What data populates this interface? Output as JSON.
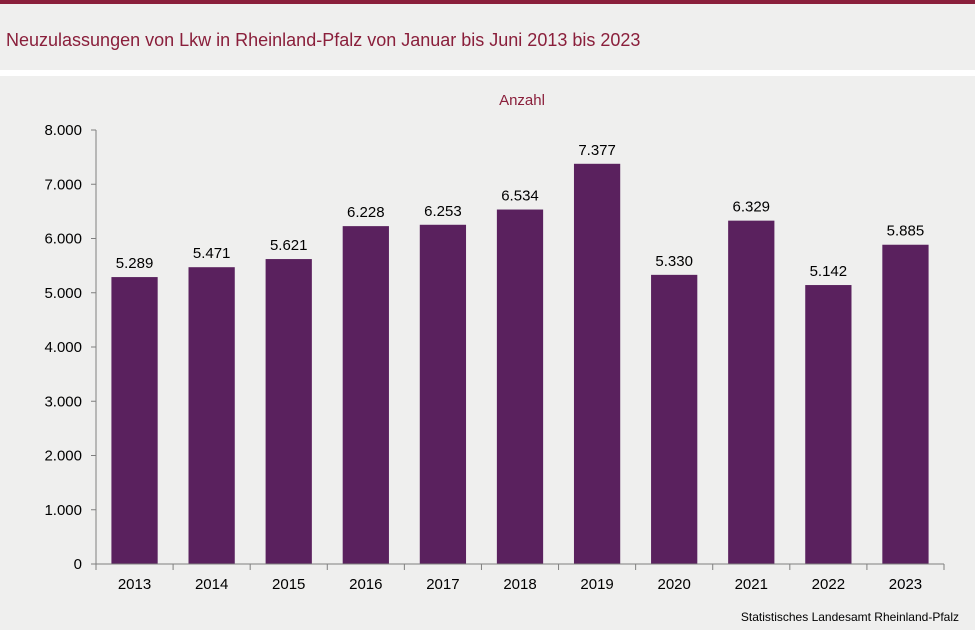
{
  "header": {
    "title": "Neuzulassungen von Lkw in Rheinland-Pfalz von Januar bis Juni 2013 bis 2023"
  },
  "footer": {
    "source": "Statistisches Landesamt  Rheinland-Pfalz"
  },
  "colors": {
    "bar": "#5a215e",
    "accent": "#8a1f3b"
  },
  "chart_data": {
    "type": "bar",
    "title": "Neuzulassungen von Lkw in Rheinland-Pfalz von Januar bis Juni 2013 bis 2023",
    "unit_label": "Anzahl",
    "categories": [
      "2013",
      "2014",
      "2015",
      "2016",
      "2017",
      "2018",
      "2019",
      "2020",
      "2021",
      "2022",
      "2023"
    ],
    "values": [
      5289,
      5471,
      5621,
      6228,
      6253,
      6534,
      7377,
      5330,
      6329,
      5142,
      5885
    ],
    "value_labels": [
      "5.289",
      "5.471",
      "5.621",
      "6.228",
      "6.253",
      "6.534",
      "7.377",
      "5.330",
      "6.329",
      "5.142",
      "5.885"
    ],
    "ylim": [
      0,
      8000
    ],
    "yticks": [
      0,
      1000,
      2000,
      3000,
      4000,
      5000,
      6000,
      7000,
      8000
    ],
    "ytick_labels": [
      "0",
      "1.000",
      "2.000",
      "3.000",
      "4.000",
      "5.000",
      "6.000",
      "7.000",
      "8.000"
    ],
    "grid": false,
    "legend": "none"
  }
}
